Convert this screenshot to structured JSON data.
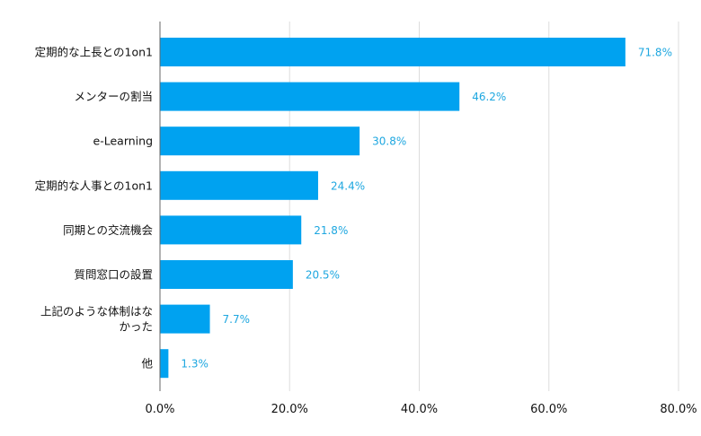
{
  "chart_data": {
    "type": "bar",
    "orientation": "horizontal",
    "categories": [
      [
        "定期的な上長との1on1"
      ],
      [
        "メンターの割当"
      ],
      [
        "e-Learning"
      ],
      [
        "定期的な人事との1on1"
      ],
      [
        "同期との交流機会"
      ],
      [
        "質問窓口の設置"
      ],
      [
        "上記のような体制はな",
        "かった"
      ],
      [
        "他"
      ]
    ],
    "values": [
      71.8,
      46.2,
      30.8,
      24.4,
      21.8,
      20.5,
      7.7,
      1.3
    ],
    "value_labels": [
      "71.8%",
      "46.2%",
      "30.8%",
      "24.4%",
      "21.8%",
      "20.5%",
      "7.7%",
      "1.3%"
    ],
    "xlim": [
      0,
      80
    ],
    "xticks": [
      0,
      20,
      40,
      60,
      80
    ],
    "xtick_labels": [
      "0.0%",
      "20.0%",
      "40.0%",
      "60.0%",
      "80.0%"
    ],
    "grid": true,
    "title": "",
    "xlabel": "",
    "ylabel": "",
    "colors": {
      "bar": "#00A2F0",
      "value_label": "#1EA7E0",
      "grid": "#DDDDDD",
      "axis": "#666666"
    }
  }
}
